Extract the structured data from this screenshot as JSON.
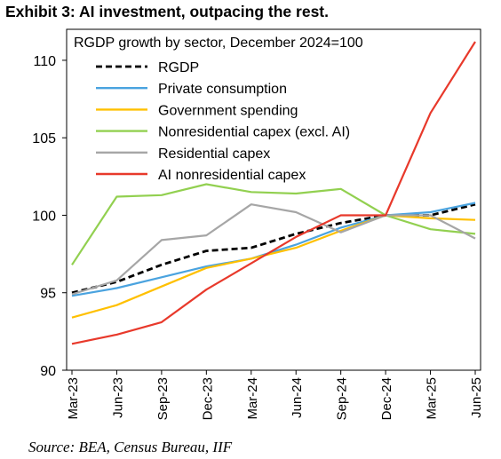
{
  "title": "Exhibit 3: AI investment, outpacing the rest.",
  "source": "Source: BEA, Census Bureau, IIF",
  "chart_data": {
    "type": "line",
    "title": "RGDP growth by sector, December 2024=100",
    "xlabel": "",
    "ylabel": "",
    "ylim": [
      90,
      112
    ],
    "yticks": [
      90,
      95,
      100,
      105,
      110
    ],
    "grid": false,
    "legend_position": "top-left",
    "x": [
      "Mar-23",
      "Jun-23",
      "Sep-23",
      "Dec-23",
      "Mar-24",
      "Jun-24",
      "Sep-24",
      "Dec-24",
      "Mar-25",
      "Jun-25"
    ],
    "series": [
      {
        "name": "RGDP",
        "color": "#000000",
        "dashed": true,
        "values": [
          95.0,
          95.7,
          96.8,
          97.7,
          97.9,
          98.8,
          99.5,
          100.0,
          100.0,
          100.7
        ]
      },
      {
        "name": "Private consumption",
        "color": "#4aa3df",
        "dashed": false,
        "values": [
          94.8,
          95.3,
          96.0,
          96.7,
          97.2,
          98.1,
          99.2,
          100.0,
          100.2,
          100.8
        ]
      },
      {
        "name": "Government spending",
        "color": "#ffc000",
        "dashed": false,
        "values": [
          93.4,
          94.2,
          95.4,
          96.6,
          97.2,
          97.9,
          99.0,
          100.0,
          99.8,
          99.7
        ]
      },
      {
        "name": "Nonresidential capex (excl. AI)",
        "color": "#92d050",
        "dashed": false,
        "values": [
          96.8,
          101.2,
          101.3,
          102.0,
          101.5,
          101.4,
          101.7,
          100.0,
          99.1,
          98.8
        ]
      },
      {
        "name": "Residential capex",
        "color": "#a6a6a6",
        "dashed": false,
        "values": [
          94.9,
          95.8,
          98.4,
          98.7,
          100.7,
          100.2,
          98.9,
          100.0,
          100.0,
          98.5
        ]
      },
      {
        "name": "AI nonresidential capex",
        "color": "#e8392b",
        "dashed": false,
        "values": [
          91.7,
          92.3,
          93.1,
          95.2,
          96.9,
          98.6,
          100.0,
          100.0,
          106.6,
          111.2
        ]
      }
    ]
  }
}
